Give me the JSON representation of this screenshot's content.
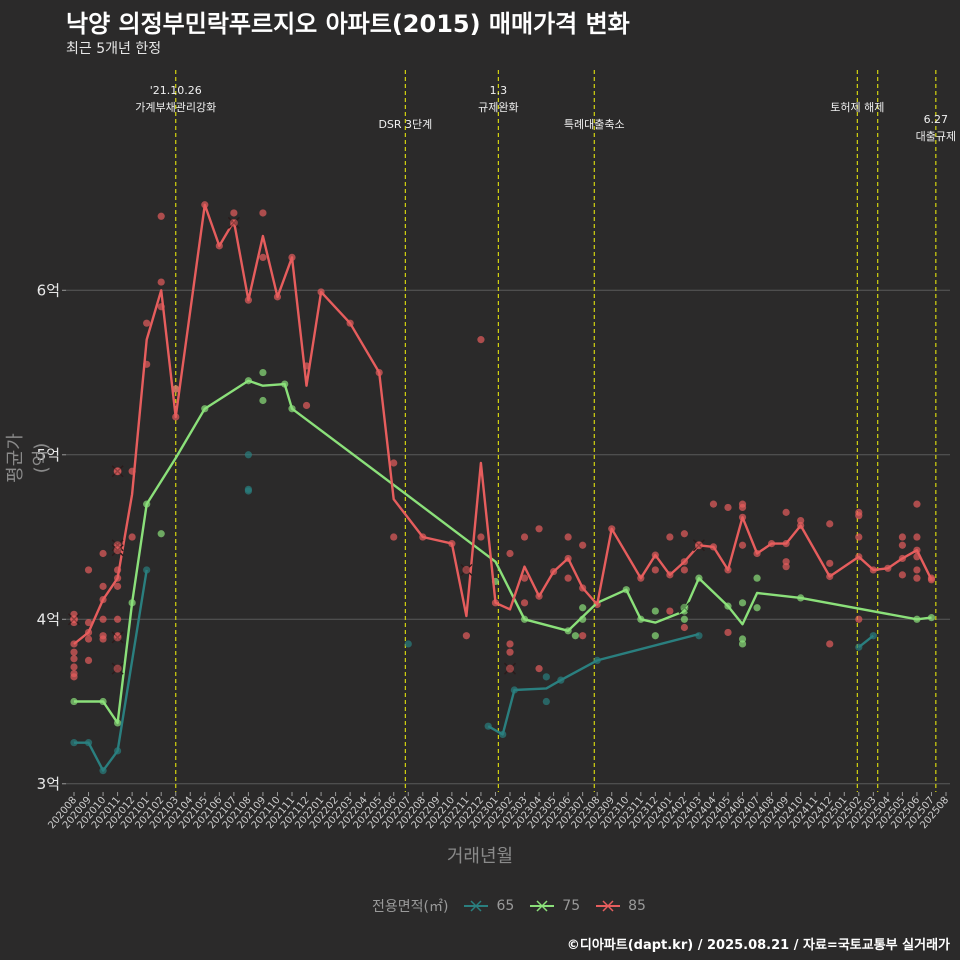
{
  "header": {
    "title": "낙양 의정부민락푸르지오 아파트(2015) 매매가격 변화",
    "subtitle": "최근 5개년 한정"
  },
  "caption": "©디아파트(dapt.kr) / 2025.08.21 / 자료=국토교통부 실거래가",
  "colors": {
    "background": "#2b2a2a",
    "grid": "#5a5a5a",
    "vline": "#d4d40f",
    "s65": "#2a7f7f",
    "s75": "#8be07a",
    "s85": "#e65d5d"
  },
  "chart_data": {
    "type": "line",
    "xlabel": "거래년월",
    "ylabel": "평균가(억)",
    "y_unit": "억",
    "ylim": [
      2.95,
      7.4
    ],
    "yticks": [
      {
        "value": 3,
        "label": "3억"
      },
      {
        "value": 4,
        "label": "4억"
      },
      {
        "value": 5,
        "label": "5억"
      },
      {
        "value": 6,
        "label": "6억"
      }
    ],
    "grid": true,
    "legend_position": "bottom",
    "legend_title": "전용면적(㎡)",
    "categories": [
      "202008",
      "202009",
      "202010",
      "202011",
      "202012",
      "202101",
      "202102",
      "202103",
      "202104",
      "202105",
      "202106",
      "202107",
      "202108",
      "202109",
      "202110",
      "202111",
      "202112",
      "202201",
      "202202",
      "202203",
      "202204",
      "202205",
      "202206",
      "202207",
      "202208",
      "202209",
      "202210",
      "202211",
      "202212",
      "202301",
      "202302",
      "202303",
      "202304",
      "202305",
      "202306",
      "202307",
      "202308",
      "202309",
      "202310",
      "202311",
      "202312",
      "202401",
      "202402",
      "202403",
      "202404",
      "202405",
      "202406",
      "202407",
      "202408",
      "202409",
      "202410",
      "202411",
      "202412",
      "202501",
      "202502",
      "202503",
      "202504",
      "202505",
      "202506",
      "202507",
      "202508"
    ],
    "annotations": [
      {
        "x": 7.0,
        "label": "'21.10.26\n가계부채관리강화",
        "row": 0
      },
      {
        "x": 22.8,
        "label": "DSR 3단계",
        "row": 2
      },
      {
        "x": 29.2,
        "label": "1.3\n규제완화",
        "row": 0
      },
      {
        "x": 35.8,
        "label": "특례대출축소",
        "row": 2
      },
      {
        "x": 53.9,
        "label": "토허제 해제",
        "row": 1
      },
      {
        "x": 55.3,
        "label": "",
        "row": 1
      },
      {
        "x": 59.3,
        "label": "6.27\n대출규제",
        "row": 1.7
      }
    ],
    "series": [
      {
        "name": "65",
        "color": "#2a7f7f",
        "line": [
          [
            0,
            3.25
          ],
          [
            1,
            3.25
          ],
          [
            2,
            3.08
          ],
          [
            3,
            3.2
          ],
          [
            5,
            4.3
          ],
          [
            null,
            null
          ],
          [
            28.5,
            3.35
          ],
          [
            29.5,
            3.3
          ],
          [
            30.3,
            3.57
          ],
          [
            32.5,
            3.58
          ],
          [
            33.5,
            3.63
          ],
          [
            36,
            3.75
          ],
          [
            43,
            3.91
          ],
          [
            null,
            null
          ],
          [
            54,
            3.83
          ],
          [
            55,
            3.9
          ]
        ],
        "points": [
          [
            0,
            3.25
          ],
          [
            1,
            3.25
          ],
          [
            2,
            3.08
          ],
          [
            3,
            3.2
          ],
          [
            5,
            4.3
          ],
          [
            12,
            5.0
          ],
          [
            12,
            4.79
          ],
          [
            12,
            4.78
          ],
          [
            23,
            3.85
          ],
          [
            28.5,
            3.35
          ],
          [
            29.5,
            3.3
          ],
          [
            30.3,
            3.57
          ],
          [
            32.5,
            3.5
          ],
          [
            32.5,
            3.65
          ],
          [
            33.5,
            3.63
          ],
          [
            36,
            3.75
          ],
          [
            43,
            3.9
          ],
          [
            54,
            3.83
          ],
          [
            55,
            3.9
          ]
        ]
      },
      {
        "name": "75",
        "color": "#8be07a",
        "line": [
          [
            0,
            3.5
          ],
          [
            2,
            3.5
          ],
          [
            3,
            3.37
          ],
          [
            4,
            4.1
          ],
          [
            5,
            4.7
          ],
          [
            7,
            4.98
          ],
          [
            9,
            5.28
          ],
          [
            12,
            5.45
          ],
          [
            13,
            5.42
          ],
          [
            14.5,
            5.43
          ],
          [
            15,
            5.28
          ],
          [
            23,
            4.75
          ],
          [
            29,
            4.35
          ],
          [
            31,
            4.0
          ],
          [
            34,
            3.93
          ],
          [
            36,
            4.1
          ],
          [
            38,
            4.18
          ],
          [
            39,
            4.0
          ],
          [
            40,
            3.98
          ],
          [
            42,
            4.05
          ],
          [
            43,
            4.25
          ],
          [
            45,
            4.08
          ],
          [
            46,
            3.97
          ],
          [
            47,
            4.16
          ],
          [
            50,
            4.13
          ],
          [
            58,
            4.0
          ],
          [
            59,
            4.01
          ]
        ],
        "points": [
          [
            0,
            3.5
          ],
          [
            2,
            3.5
          ],
          [
            3,
            3.37
          ],
          [
            4,
            4.1
          ],
          [
            5,
            4.7
          ],
          [
            6,
            4.52
          ],
          [
            7,
            5.4
          ],
          [
            9,
            5.28
          ],
          [
            12,
            5.45
          ],
          [
            13,
            5.5
          ],
          [
            13,
            5.33
          ],
          [
            14.5,
            5.43
          ],
          [
            15,
            5.28
          ],
          [
            29,
            4.23
          ],
          [
            31,
            4.0
          ],
          [
            34,
            3.93
          ],
          [
            34.5,
            3.9
          ],
          [
            35,
            4.07
          ],
          [
            35,
            4.0
          ],
          [
            38,
            4.18
          ],
          [
            39,
            4.0
          ],
          [
            40,
            4.05
          ],
          [
            40,
            3.9
          ],
          [
            42,
            4.0
          ],
          [
            42,
            4.05
          ],
          [
            43,
            4.25
          ],
          [
            45,
            4.08
          ],
          [
            46,
            3.85
          ],
          [
            46,
            3.88
          ],
          [
            46,
            4.1
          ],
          [
            47,
            4.07
          ],
          [
            47,
            4.25
          ],
          [
            50,
            4.13
          ],
          [
            58,
            4.0
          ],
          [
            59,
            4.01
          ]
        ]
      },
      {
        "name": "85",
        "color": "#e65d5d",
        "line": [
          [
            0,
            3.85
          ],
          [
            1,
            3.92
          ],
          [
            2,
            4.12
          ],
          [
            3,
            4.25
          ],
          [
            4,
            4.76
          ],
          [
            5,
            5.7
          ],
          [
            6,
            6.0
          ],
          [
            7,
            5.23
          ],
          [
            9,
            6.52
          ],
          [
            10,
            6.27
          ],
          [
            11,
            6.42
          ],
          [
            12,
            5.94
          ],
          [
            13,
            6.33
          ],
          [
            14,
            5.96
          ],
          [
            15,
            6.2
          ],
          [
            16,
            5.42
          ],
          [
            17,
            5.99
          ],
          [
            19,
            5.8
          ],
          [
            21,
            5.5
          ],
          [
            22,
            4.73
          ],
          [
            24,
            4.5
          ],
          [
            26,
            4.46
          ],
          [
            27,
            4.02
          ],
          [
            28,
            4.95
          ],
          [
            29,
            4.1
          ],
          [
            30,
            4.06
          ],
          [
            31,
            4.32
          ],
          [
            32,
            4.14
          ],
          [
            33,
            4.29
          ],
          [
            34,
            4.37
          ],
          [
            35,
            4.19
          ],
          [
            36,
            4.09
          ],
          [
            37,
            4.55
          ],
          [
            39,
            4.25
          ],
          [
            40,
            4.39
          ],
          [
            41,
            4.27
          ],
          [
            42,
            4.35
          ],
          [
            43,
            4.45
          ],
          [
            44,
            4.44
          ],
          [
            45,
            4.3
          ],
          [
            46,
            4.62
          ],
          [
            47,
            4.4
          ],
          [
            48,
            4.46
          ],
          [
            49,
            4.46
          ],
          [
            50,
            4.57
          ],
          [
            52,
            4.26
          ],
          [
            54,
            4.38
          ],
          [
            55,
            4.3
          ],
          [
            56,
            4.31
          ],
          [
            57,
            4.37
          ],
          [
            58,
            4.42
          ],
          [
            59,
            4.24
          ]
        ],
        "points": [
          [
            0,
            3.85
          ],
          [
            0,
            3.8
          ],
          [
            0,
            3.76
          ],
          [
            0,
            3.71
          ],
          [
            0,
            3.67
          ],
          [
            0,
            3.65
          ],
          [
            0,
            4.03
          ],
          [
            0,
            4.0
          ],
          [
            0,
            3.98
          ],
          [
            1,
            3.92
          ],
          [
            1,
            3.88
          ],
          [
            1,
            3.75
          ],
          [
            1,
            4.3
          ],
          [
            1,
            3.98
          ],
          [
            2,
            4.12
          ],
          [
            2,
            4.4
          ],
          [
            2,
            4.2
          ],
          [
            2,
            3.9
          ],
          [
            2,
            3.88
          ],
          [
            2,
            4.0
          ],
          [
            3,
            4.25
          ],
          [
            3,
            4.44
          ],
          [
            3,
            4.3
          ],
          [
            3,
            4.2
          ],
          [
            3,
            4.0
          ],
          [
            3,
            3.9
          ],
          [
            3,
            4.9
          ],
          [
            4,
            4.9
          ],
          [
            4,
            4.5
          ],
          [
            5,
            5.8
          ],
          [
            5,
            5.55
          ],
          [
            6,
            6.45
          ],
          [
            6,
            6.05
          ],
          [
            6,
            5.9
          ],
          [
            7,
            5.23
          ],
          [
            7,
            5.4
          ],
          [
            9,
            6.52
          ],
          [
            10,
            6.27
          ],
          [
            11,
            6.47
          ],
          [
            12,
            5.94
          ],
          [
            13,
            6.47
          ],
          [
            13,
            6.2
          ],
          [
            14,
            5.96
          ],
          [
            15,
            6.2
          ],
          [
            16,
            5.54
          ],
          [
            16,
            5.3
          ],
          [
            17,
            5.99
          ],
          [
            19,
            5.8
          ],
          [
            21,
            5.5
          ],
          [
            22,
            4.95
          ],
          [
            22,
            4.5
          ],
          [
            24,
            4.5
          ],
          [
            26,
            4.46
          ],
          [
            27,
            3.9
          ],
          [
            28,
            5.7
          ],
          [
            28,
            4.5
          ],
          [
            29,
            4.1
          ],
          [
            30,
            4.4
          ],
          [
            30,
            3.85
          ],
          [
            30,
            3.8
          ],
          [
            31,
            4.5
          ],
          [
            31,
            4.25
          ],
          [
            31,
            4.1
          ],
          [
            32,
            4.14
          ],
          [
            32,
            4.55
          ],
          [
            32,
            3.7
          ],
          [
            33,
            4.29
          ],
          [
            34,
            4.37
          ],
          [
            34,
            4.5
          ],
          [
            34,
            4.25
          ],
          [
            35,
            4.19
          ],
          [
            35,
            4.45
          ],
          [
            35,
            3.9
          ],
          [
            36,
            4.09
          ],
          [
            37,
            4.55
          ],
          [
            39,
            4.25
          ],
          [
            40,
            4.39
          ],
          [
            40,
            4.3
          ],
          [
            41,
            4.27
          ],
          [
            41,
            4.5
          ],
          [
            41,
            4.05
          ],
          [
            42,
            4.35
          ],
          [
            42,
            4.3
          ],
          [
            42,
            4.52
          ],
          [
            42,
            3.95
          ],
          [
            43,
            4.45
          ],
          [
            44,
            4.44
          ],
          [
            44,
            4.7
          ],
          [
            45,
            4.3
          ],
          [
            45,
            4.68
          ],
          [
            45,
            3.92
          ],
          [
            46,
            4.62
          ],
          [
            46,
            4.68
          ],
          [
            46,
            4.7
          ],
          [
            46,
            4.45
          ],
          [
            47,
            4.4
          ],
          [
            48,
            4.46
          ],
          [
            49,
            4.46
          ],
          [
            49,
            4.65
          ],
          [
            49,
            4.35
          ],
          [
            49,
            4.32
          ],
          [
            50,
            4.57
          ],
          [
            50,
            4.6
          ],
          [
            52,
            4.26
          ],
          [
            52,
            4.58
          ],
          [
            52,
            4.34
          ],
          [
            52,
            3.85
          ],
          [
            54,
            4.38
          ],
          [
            54,
            4.65
          ],
          [
            54,
            4.63
          ],
          [
            54,
            4.5
          ],
          [
            54,
            4.0
          ],
          [
            55,
            4.3
          ],
          [
            56,
            4.31
          ],
          [
            57,
            4.37
          ],
          [
            57,
            4.5
          ],
          [
            57,
            4.45
          ],
          [
            57,
            4.27
          ],
          [
            58,
            4.42
          ],
          [
            58,
            4.25
          ],
          [
            58,
            4.38
          ],
          [
            58,
            4.3
          ],
          [
            58,
            4.7
          ],
          [
            58,
            4.5
          ],
          [
            59,
            4.24
          ],
          [
            59,
            4.25
          ]
        ]
      }
    ],
    "cancelled_marks": [
      {
        "series": "85",
        "x": 0,
        "y": 4.0
      },
      {
        "series": "85",
        "x": 3,
        "y": 4.9
      },
      {
        "series": "85",
        "x": 3,
        "y": 4.45
      },
      {
        "series": "85",
        "x": 3,
        "y": 4.42
      },
      {
        "series": "85",
        "x": 3,
        "y": 3.89
      },
      {
        "series": "85",
        "x": 3,
        "y": 3.7
      },
      {
        "series": "85",
        "x": 11,
        "y": 6.41
      },
      {
        "series": "85",
        "x": 27,
        "y": 4.3
      },
      {
        "series": "85",
        "x": 30,
        "y": 3.7
      },
      {
        "series": "75",
        "x": 42,
        "y": 4.07
      },
      {
        "series": "85",
        "x": 43,
        "y": 4.45
      }
    ]
  }
}
